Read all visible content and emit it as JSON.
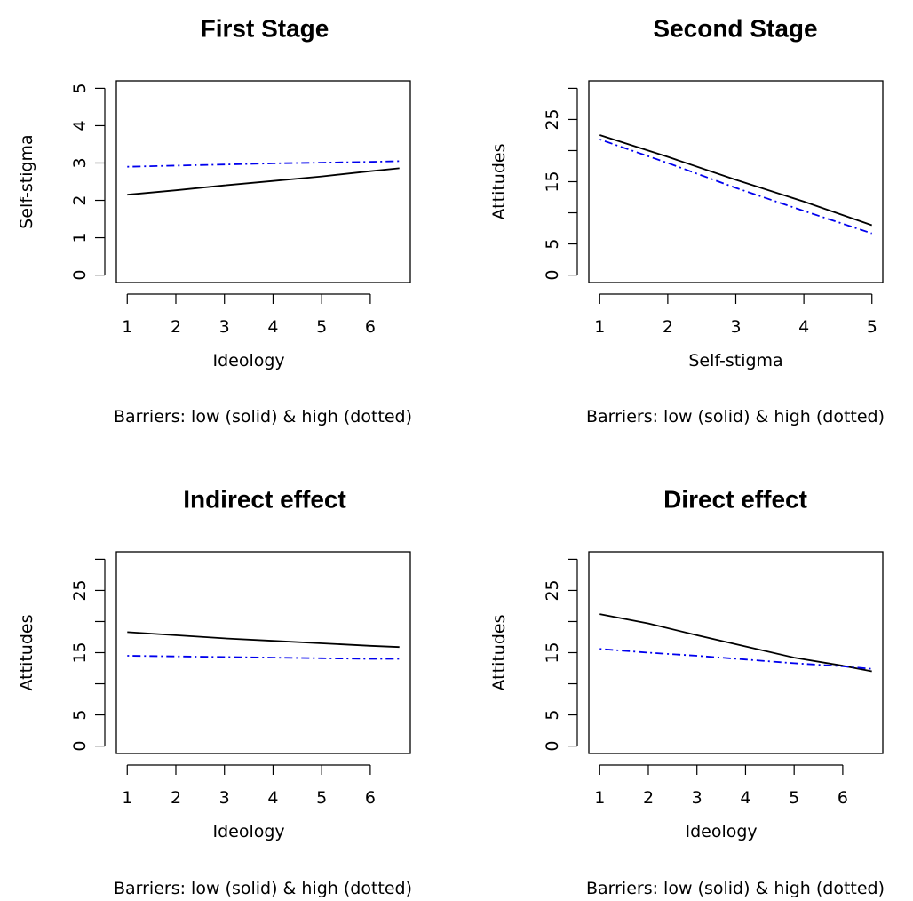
{
  "chart_data": [
    {
      "type": "line",
      "title": "First Stage",
      "xlabel": "Ideology",
      "ylabel": "Self-stigma",
      "caption": "Barriers: low (solid) & high (dotted)",
      "xlim": [
        1,
        6.6
      ],
      "ylim": [
        0,
        5
      ],
      "xticks": [
        "1",
        "2",
        "3",
        "4",
        "5",
        "6"
      ],
      "yticks": [
        "0",
        "1",
        "2",
        "3",
        "4",
        "5"
      ],
      "series": [
        {
          "style": "solid",
          "color": "#000000",
          "x": [
            1,
            2,
            3,
            4,
            5,
            6,
            6.6
          ],
          "y": [
            2.15,
            2.27,
            2.4,
            2.52,
            2.64,
            2.78,
            2.86
          ]
        },
        {
          "style": "dotdash",
          "color": "#0000ee",
          "x": [
            1,
            2,
            3,
            4,
            5,
            6,
            6.6
          ],
          "y": [
            2.9,
            2.93,
            2.96,
            2.99,
            3.01,
            3.03,
            3.05
          ]
        }
      ]
    },
    {
      "type": "line",
      "title": "Second Stage",
      "xlabel": "Self-stigma",
      "ylabel": "Attitudes",
      "caption": "Barriers: low (solid) & high (dotted)",
      "xlim": [
        1,
        5
      ],
      "ylim": [
        0,
        30
      ],
      "xticks": [
        "1",
        "2",
        "3",
        "4",
        "5"
      ],
      "yticks": [
        "0",
        "5",
        "15",
        "25"
      ],
      "series": [
        {
          "style": "solid",
          "color": "#000000",
          "x": [
            1,
            2,
            3,
            4,
            5
          ],
          "y": [
            22.5,
            19.0,
            15.3,
            11.8,
            8.0
          ]
        },
        {
          "style": "dotdash",
          "color": "#0000ee",
          "x": [
            1,
            2,
            3,
            4,
            5
          ],
          "y": [
            21.8,
            18.0,
            14.0,
            10.3,
            6.7
          ]
        }
      ]
    },
    {
      "type": "line",
      "title": "Indirect effect",
      "xlabel": "Ideology",
      "ylabel": "Attitudes",
      "caption": "Barriers: low (solid) & high (dotted)",
      "xlim": [
        1,
        6.6
      ],
      "ylim": [
        0,
        30
      ],
      "xticks": [
        "1",
        "2",
        "3",
        "4",
        "5",
        "6"
      ],
      "yticks": [
        "0",
        "5",
        "15",
        "25"
      ],
      "series": [
        {
          "style": "solid",
          "color": "#000000",
          "x": [
            1,
            2,
            3,
            4,
            5,
            6,
            6.6
          ],
          "y": [
            18.3,
            17.8,
            17.3,
            16.9,
            16.5,
            16.1,
            15.9
          ]
        },
        {
          "style": "dotdash",
          "color": "#0000ee",
          "x": [
            1,
            2,
            3,
            4,
            5,
            6,
            6.6
          ],
          "y": [
            14.5,
            14.4,
            14.3,
            14.2,
            14.1,
            14.0,
            14.0
          ]
        }
      ]
    },
    {
      "type": "line",
      "title": "Direct effect",
      "xlabel": "Ideology",
      "ylabel": "Attitudes",
      "caption": "Barriers: low (solid) & high (dotted)",
      "xlim": [
        1,
        6.6
      ],
      "ylim": [
        0,
        30
      ],
      "xticks": [
        "1",
        "2",
        "3",
        "4",
        "5",
        "6"
      ],
      "yticks": [
        "0",
        "5",
        "15",
        "25"
      ],
      "series": [
        {
          "style": "solid",
          "color": "#000000",
          "x": [
            1,
            2,
            3,
            4,
            5,
            6,
            6.6
          ],
          "y": [
            21.2,
            19.7,
            17.8,
            16.0,
            14.2,
            12.9,
            12.0
          ]
        },
        {
          "style": "dotdash",
          "color": "#0000ee",
          "x": [
            1,
            2,
            3,
            4,
            5,
            6,
            6.6
          ],
          "y": [
            15.6,
            15.0,
            14.5,
            13.9,
            13.3,
            12.8,
            12.4
          ]
        }
      ]
    }
  ]
}
